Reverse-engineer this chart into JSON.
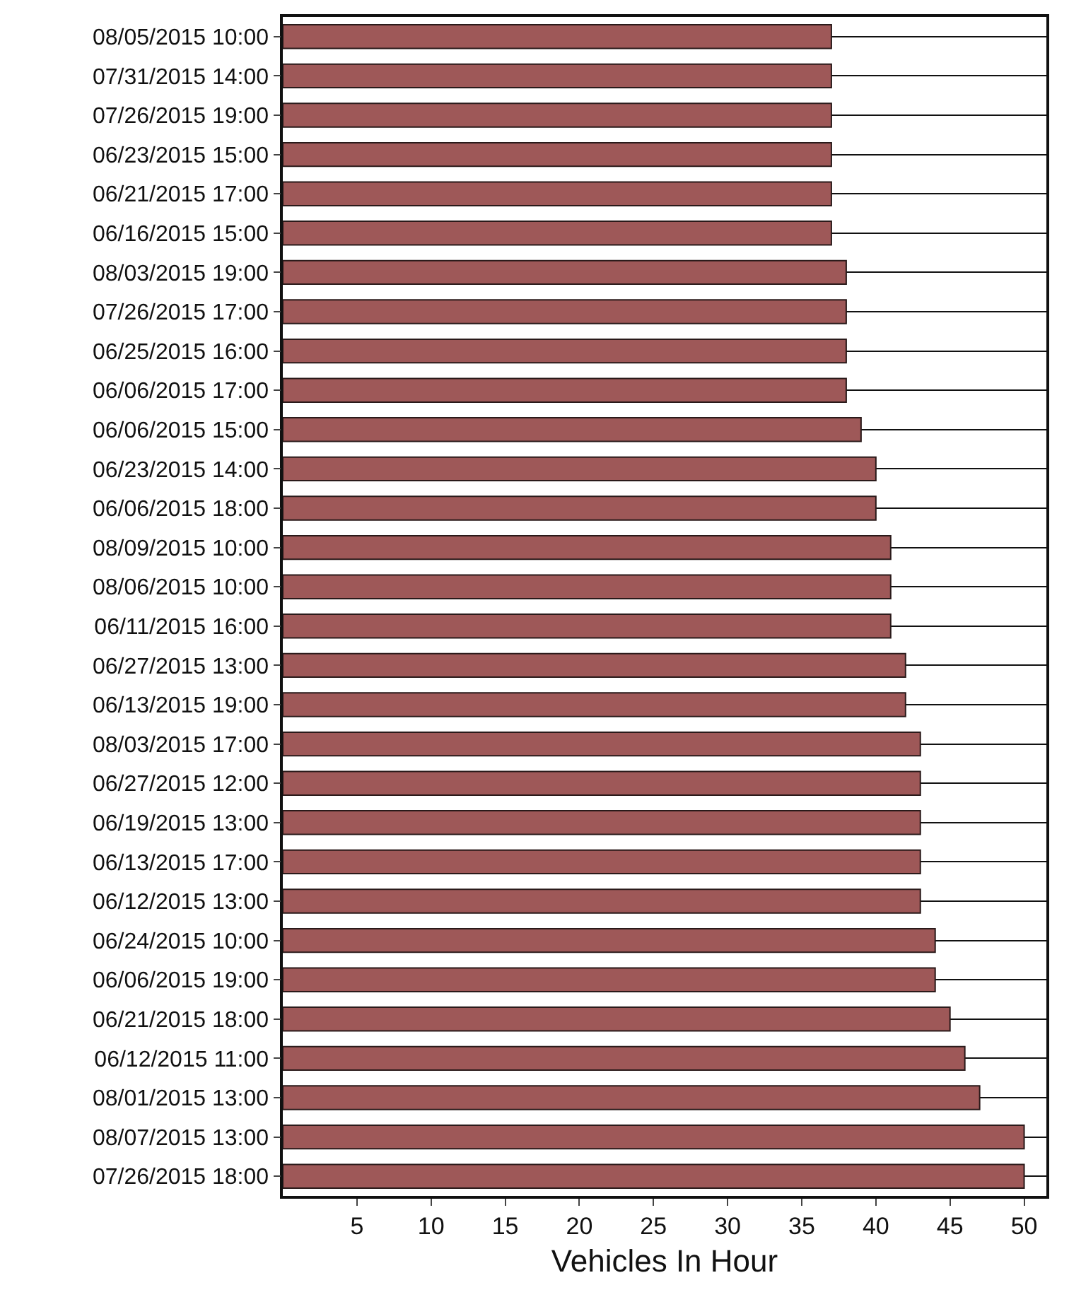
{
  "chart_data": {
    "type": "bar",
    "orientation": "horizontal",
    "xlabel": "Vehicles In Hour",
    "categories": [
      "08/05/2015 10:00",
      "07/31/2015 14:00",
      "07/26/2015 19:00",
      "06/23/2015 15:00",
      "06/21/2015 17:00",
      "06/16/2015 15:00",
      "08/03/2015 19:00",
      "07/26/2015 17:00",
      "06/25/2015 16:00",
      "06/06/2015 17:00",
      "06/06/2015 15:00",
      "06/23/2015 14:00",
      "06/06/2015 18:00",
      "08/09/2015 10:00",
      "08/06/2015 10:00",
      "06/11/2015 16:00",
      "06/27/2015 13:00",
      "06/13/2015 19:00",
      "08/03/2015 17:00",
      "06/27/2015 12:00",
      "06/19/2015 13:00",
      "06/13/2015 17:00",
      "06/12/2015 13:00",
      "06/24/2015 10:00",
      "06/06/2015 19:00",
      "06/21/2015 18:00",
      "06/12/2015 11:00",
      "08/01/2015 13:00",
      "08/07/2015 13:00",
      "07/26/2015 18:00"
    ],
    "values": [
      37,
      37,
      37,
      37,
      37,
      37,
      38,
      38,
      38,
      38,
      39,
      40,
      40,
      41,
      41,
      41,
      42,
      42,
      43,
      43,
      43,
      43,
      43,
      44,
      44,
      45,
      46,
      47,
      50,
      50
    ],
    "color": "#9e5858",
    "xlim": [
      0,
      51.5
    ],
    "xticks": [
      5,
      10,
      15,
      20,
      25,
      30,
      35,
      40,
      45,
      50
    ],
    "grid": "y"
  }
}
